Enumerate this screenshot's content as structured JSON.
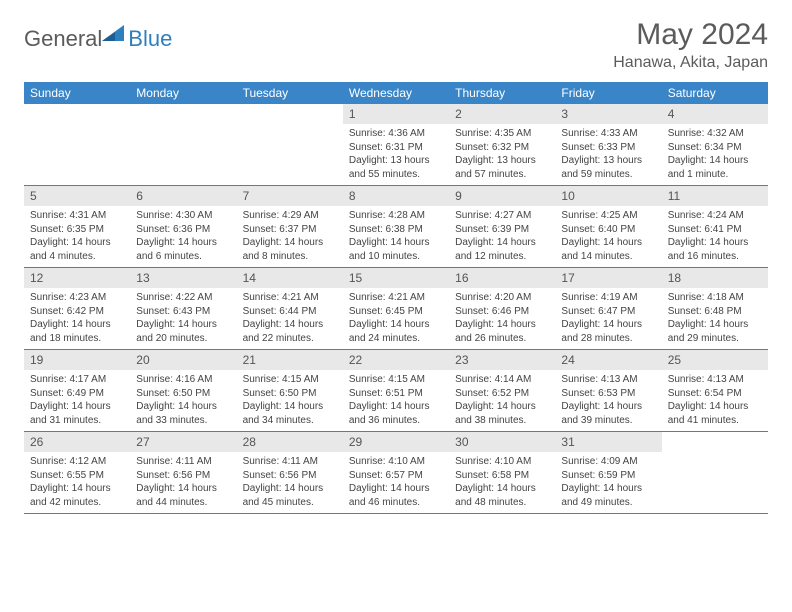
{
  "logo": {
    "name": "General",
    "accent": "Blue"
  },
  "title": "May 2024",
  "location": "Hanawa, Akita, Japan",
  "colors": {
    "header_bg": "#3a85c7",
    "header_text": "#ffffff",
    "daynum_bg": "#e8e8e8",
    "text": "#5b5b5b",
    "border": "#3a85c7"
  },
  "day_labels": [
    "Sunday",
    "Monday",
    "Tuesday",
    "Wednesday",
    "Thursday",
    "Friday",
    "Saturday"
  ],
  "weeks": [
    [
      {
        "n": "",
        "sr": "",
        "ss": "",
        "dl": ""
      },
      {
        "n": "",
        "sr": "",
        "ss": "",
        "dl": ""
      },
      {
        "n": "",
        "sr": "",
        "ss": "",
        "dl": ""
      },
      {
        "n": "1",
        "sr": "Sunrise: 4:36 AM",
        "ss": "Sunset: 6:31 PM",
        "dl": "Daylight: 13 hours and 55 minutes."
      },
      {
        "n": "2",
        "sr": "Sunrise: 4:35 AM",
        "ss": "Sunset: 6:32 PM",
        "dl": "Daylight: 13 hours and 57 minutes."
      },
      {
        "n": "3",
        "sr": "Sunrise: 4:33 AM",
        "ss": "Sunset: 6:33 PM",
        "dl": "Daylight: 13 hours and 59 minutes."
      },
      {
        "n": "4",
        "sr": "Sunrise: 4:32 AM",
        "ss": "Sunset: 6:34 PM",
        "dl": "Daylight: 14 hours and 1 minute."
      }
    ],
    [
      {
        "n": "5",
        "sr": "Sunrise: 4:31 AM",
        "ss": "Sunset: 6:35 PM",
        "dl": "Daylight: 14 hours and 4 minutes."
      },
      {
        "n": "6",
        "sr": "Sunrise: 4:30 AM",
        "ss": "Sunset: 6:36 PM",
        "dl": "Daylight: 14 hours and 6 minutes."
      },
      {
        "n": "7",
        "sr": "Sunrise: 4:29 AM",
        "ss": "Sunset: 6:37 PM",
        "dl": "Daylight: 14 hours and 8 minutes."
      },
      {
        "n": "8",
        "sr": "Sunrise: 4:28 AM",
        "ss": "Sunset: 6:38 PM",
        "dl": "Daylight: 14 hours and 10 minutes."
      },
      {
        "n": "9",
        "sr": "Sunrise: 4:27 AM",
        "ss": "Sunset: 6:39 PM",
        "dl": "Daylight: 14 hours and 12 minutes."
      },
      {
        "n": "10",
        "sr": "Sunrise: 4:25 AM",
        "ss": "Sunset: 6:40 PM",
        "dl": "Daylight: 14 hours and 14 minutes."
      },
      {
        "n": "11",
        "sr": "Sunrise: 4:24 AM",
        "ss": "Sunset: 6:41 PM",
        "dl": "Daylight: 14 hours and 16 minutes."
      }
    ],
    [
      {
        "n": "12",
        "sr": "Sunrise: 4:23 AM",
        "ss": "Sunset: 6:42 PM",
        "dl": "Daylight: 14 hours and 18 minutes."
      },
      {
        "n": "13",
        "sr": "Sunrise: 4:22 AM",
        "ss": "Sunset: 6:43 PM",
        "dl": "Daylight: 14 hours and 20 minutes."
      },
      {
        "n": "14",
        "sr": "Sunrise: 4:21 AM",
        "ss": "Sunset: 6:44 PM",
        "dl": "Daylight: 14 hours and 22 minutes."
      },
      {
        "n": "15",
        "sr": "Sunrise: 4:21 AM",
        "ss": "Sunset: 6:45 PM",
        "dl": "Daylight: 14 hours and 24 minutes."
      },
      {
        "n": "16",
        "sr": "Sunrise: 4:20 AM",
        "ss": "Sunset: 6:46 PM",
        "dl": "Daylight: 14 hours and 26 minutes."
      },
      {
        "n": "17",
        "sr": "Sunrise: 4:19 AM",
        "ss": "Sunset: 6:47 PM",
        "dl": "Daylight: 14 hours and 28 minutes."
      },
      {
        "n": "18",
        "sr": "Sunrise: 4:18 AM",
        "ss": "Sunset: 6:48 PM",
        "dl": "Daylight: 14 hours and 29 minutes."
      }
    ],
    [
      {
        "n": "19",
        "sr": "Sunrise: 4:17 AM",
        "ss": "Sunset: 6:49 PM",
        "dl": "Daylight: 14 hours and 31 minutes."
      },
      {
        "n": "20",
        "sr": "Sunrise: 4:16 AM",
        "ss": "Sunset: 6:50 PM",
        "dl": "Daylight: 14 hours and 33 minutes."
      },
      {
        "n": "21",
        "sr": "Sunrise: 4:15 AM",
        "ss": "Sunset: 6:50 PM",
        "dl": "Daylight: 14 hours and 34 minutes."
      },
      {
        "n": "22",
        "sr": "Sunrise: 4:15 AM",
        "ss": "Sunset: 6:51 PM",
        "dl": "Daylight: 14 hours and 36 minutes."
      },
      {
        "n": "23",
        "sr": "Sunrise: 4:14 AM",
        "ss": "Sunset: 6:52 PM",
        "dl": "Daylight: 14 hours and 38 minutes."
      },
      {
        "n": "24",
        "sr": "Sunrise: 4:13 AM",
        "ss": "Sunset: 6:53 PM",
        "dl": "Daylight: 14 hours and 39 minutes."
      },
      {
        "n": "25",
        "sr": "Sunrise: 4:13 AM",
        "ss": "Sunset: 6:54 PM",
        "dl": "Daylight: 14 hours and 41 minutes."
      }
    ],
    [
      {
        "n": "26",
        "sr": "Sunrise: 4:12 AM",
        "ss": "Sunset: 6:55 PM",
        "dl": "Daylight: 14 hours and 42 minutes."
      },
      {
        "n": "27",
        "sr": "Sunrise: 4:11 AM",
        "ss": "Sunset: 6:56 PM",
        "dl": "Daylight: 14 hours and 44 minutes."
      },
      {
        "n": "28",
        "sr": "Sunrise: 4:11 AM",
        "ss": "Sunset: 6:56 PM",
        "dl": "Daylight: 14 hours and 45 minutes."
      },
      {
        "n": "29",
        "sr": "Sunrise: 4:10 AM",
        "ss": "Sunset: 6:57 PM",
        "dl": "Daylight: 14 hours and 46 minutes."
      },
      {
        "n": "30",
        "sr": "Sunrise: 4:10 AM",
        "ss": "Sunset: 6:58 PM",
        "dl": "Daylight: 14 hours and 48 minutes."
      },
      {
        "n": "31",
        "sr": "Sunrise: 4:09 AM",
        "ss": "Sunset: 6:59 PM",
        "dl": "Daylight: 14 hours and 49 minutes."
      },
      {
        "n": "",
        "sr": "",
        "ss": "",
        "dl": ""
      }
    ]
  ]
}
